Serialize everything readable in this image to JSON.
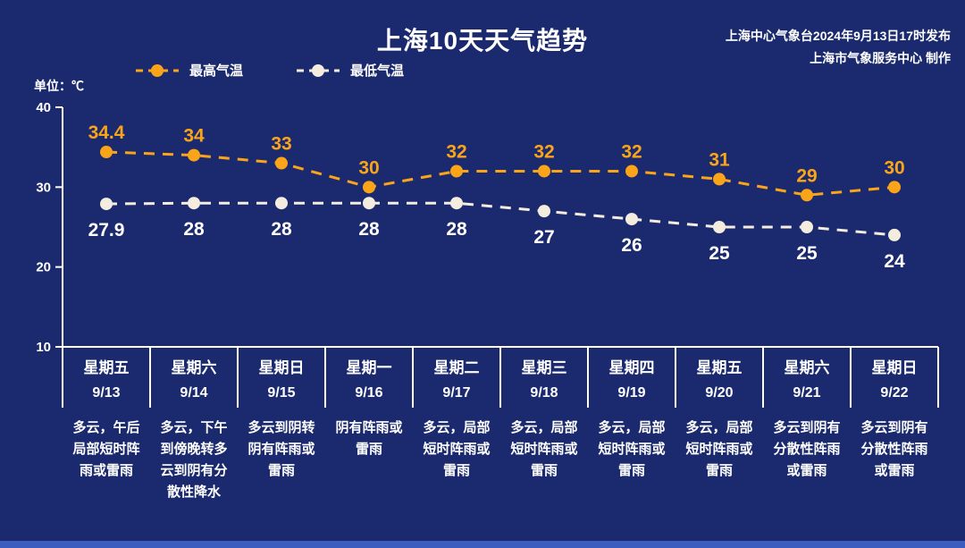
{
  "header": {
    "title": "上海10天天气趋势",
    "issuer_line1": "上海中心气象台2024年9月13日17时发布",
    "issuer_line2": "上海市气象服务中心 制作"
  },
  "legend": {
    "unit_label": "单位：℃",
    "max_label": "最高气温",
    "min_label": "最低气温"
  },
  "colors": {
    "background": "#1b2a6e",
    "max_series": "#faa519",
    "min_series": "#f4eddf",
    "axis": "#ffffff",
    "value_label_min": "#ffffff",
    "bottom_bar": "#3c5cc0"
  },
  "chart_data": {
    "type": "line",
    "title": "上海10天天气趋势",
    "unit": "℃",
    "grid": false,
    "legend_position": "top",
    "ylim": [
      10,
      40
    ],
    "yticks": [
      40,
      30,
      20,
      10
    ],
    "categories": [
      {
        "day": "星期五",
        "date": "9/13",
        "weather": "多云，午后局部短时阵雨或雷雨"
      },
      {
        "day": "星期六",
        "date": "9/14",
        "weather": "多云，下午到傍晚转多云到阴有分散性降水"
      },
      {
        "day": "星期日",
        "date": "9/15",
        "weather": "多云到阴转阴有阵雨或雷雨"
      },
      {
        "day": "星期一",
        "date": "9/16",
        "weather": "阴有阵雨或雷雨"
      },
      {
        "day": "星期二",
        "date": "9/17",
        "weather": "多云，局部短时阵雨或雷雨"
      },
      {
        "day": "星期三",
        "date": "9/18",
        "weather": "多云，局部短时阵雨或雷雨"
      },
      {
        "day": "星期四",
        "date": "9/19",
        "weather": "多云，局部短时阵雨或雷雨"
      },
      {
        "day": "星期五",
        "date": "9/20",
        "weather": "多云，局部短时阵雨或雷雨"
      },
      {
        "day": "星期六",
        "date": "9/21",
        "weather": "多云到阴有分散性阵雨或雷雨"
      },
      {
        "day": "星期日",
        "date": "9/22",
        "weather": "多云到阴有分散性阵雨或雷雨"
      }
    ],
    "series": [
      {
        "name": "最高气温",
        "color": "#faa519",
        "values": [
          34.4,
          34,
          33,
          30,
          32,
          32,
          32,
          31,
          29,
          30
        ]
      },
      {
        "name": "最低气温",
        "color": "#f4eddf",
        "values": [
          27.9,
          28,
          28,
          28,
          28,
          27,
          26,
          25,
          25,
          24
        ]
      }
    ]
  }
}
